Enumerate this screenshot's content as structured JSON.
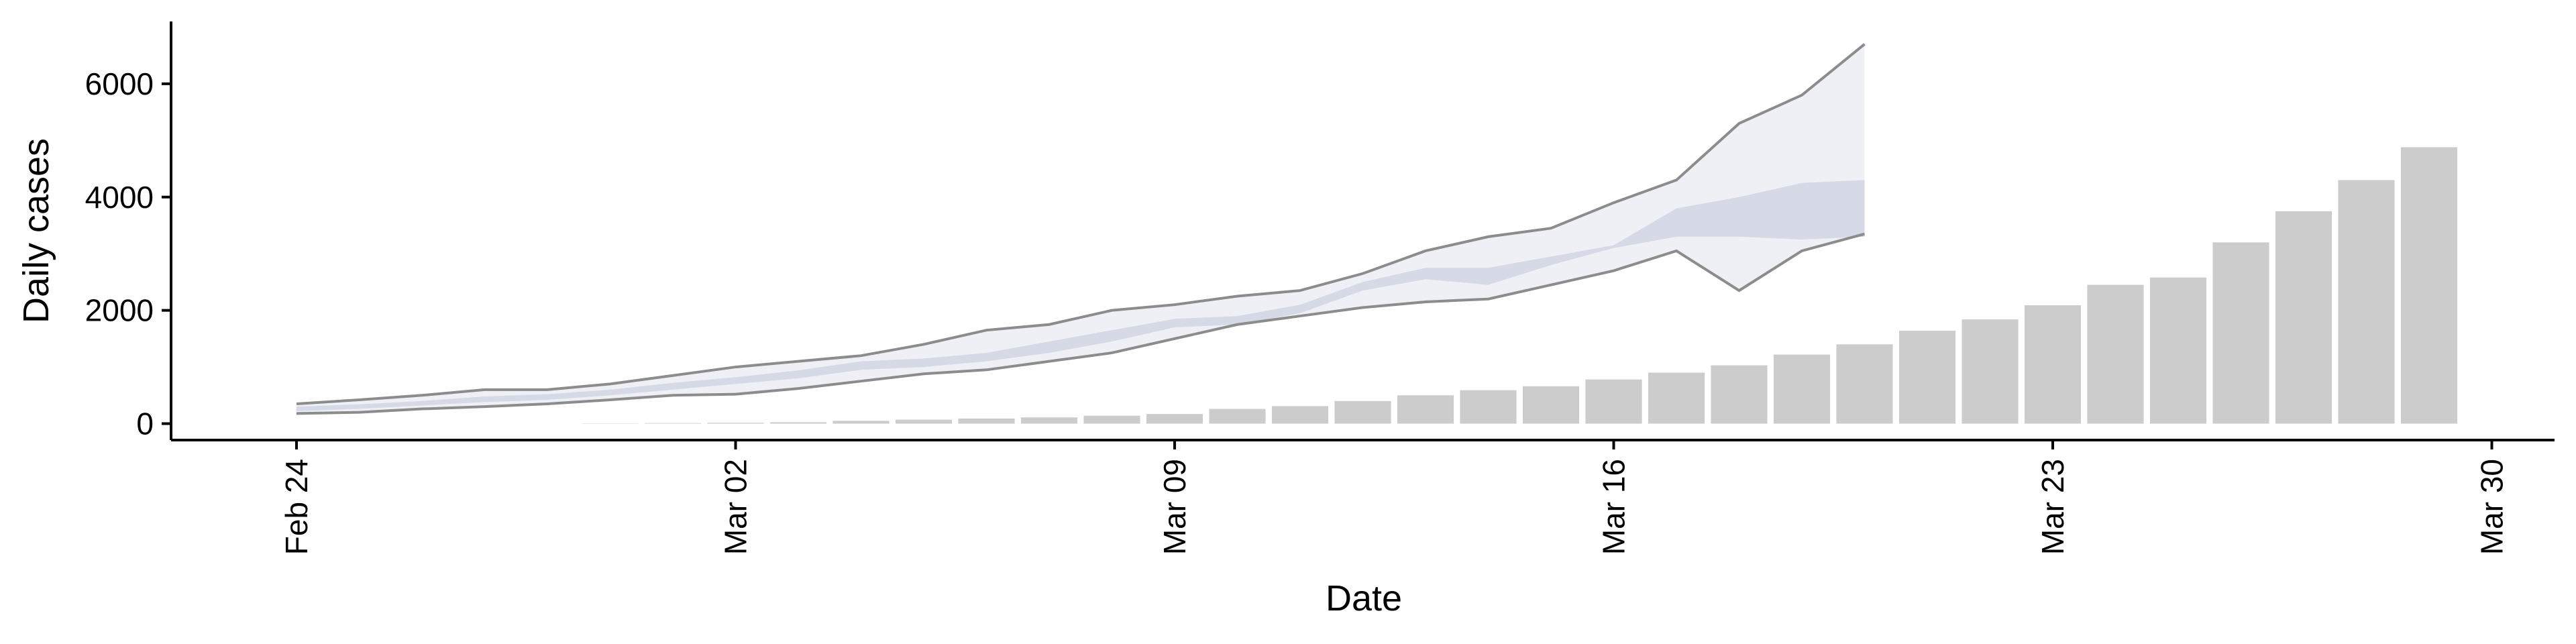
{
  "chart_data": {
    "type": "bar_forecast",
    "xlabel": "Date",
    "ylabel": "Daily cases",
    "xlim": [
      "Feb 22",
      "Mar 31"
    ],
    "xticks": [
      "Feb 24",
      "Mar 02",
      "Mar 09",
      "Mar 16",
      "Mar 23",
      "Mar 30"
    ],
    "ylim": [
      -290,
      7100
    ],
    "yticks": [
      0,
      2000,
      4000,
      6000
    ],
    "bars": {
      "color": "#cccccc",
      "x": [
        "Feb 29",
        "Mar 01",
        "Mar 02",
        "Mar 03",
        "Mar 04",
        "Mar 05",
        "Mar 06",
        "Mar 07",
        "Mar 08",
        "Mar 09",
        "Mar 10",
        "Mar 11",
        "Mar 12",
        "Mar 13",
        "Mar 14",
        "Mar 15",
        "Mar 16",
        "Mar 17",
        "Mar 18",
        "Mar 19",
        "Mar 20",
        "Mar 21",
        "Mar 22",
        "Mar 23",
        "Mar 24",
        "Mar 25",
        "Mar 26",
        "Mar 27",
        "Mar 28",
        "Mar 29"
      ],
      "values": [
        5,
        10,
        15,
        25,
        50,
        70,
        90,
        110,
        140,
        170,
        260,
        310,
        400,
        500,
        590,
        660,
        780,
        900,
        1030,
        1220,
        1400,
        1640,
        1840,
        2090,
        2450,
        2580,
        3200,
        3750,
        4300,
        4880
      ]
    },
    "forecast": {
      "outer_color": "#eef0f5",
      "inner_color": "#d6dae7",
      "line_color": "#8c8c8c",
      "x": [
        "Feb 24",
        "Feb 25",
        "Feb 26",
        "Feb 27",
        "Feb 28",
        "Feb 29",
        "Mar 01",
        "Mar 02",
        "Mar 03",
        "Mar 04",
        "Mar 05",
        "Mar 06",
        "Mar 07",
        "Mar 08",
        "Mar 09",
        "Mar 10",
        "Mar 11",
        "Mar 12",
        "Mar 13",
        "Mar 14",
        "Mar 15",
        "Mar 16",
        "Mar 17",
        "Mar 18",
        "Mar 19",
        "Mar 20"
      ],
      "upper": [
        350,
        420,
        500,
        600,
        600,
        700,
        850,
        1000,
        1100,
        1200,
        1400,
        1650,
        1750,
        2000,
        2100,
        2250,
        2350,
        2650,
        3050,
        3300,
        3450,
        3900,
        4300,
        5300,
        5800,
        6700
      ],
      "lower": [
        180,
        200,
        260,
        300,
        350,
        420,
        500,
        520,
        620,
        750,
        880,
        950,
        1100,
        1250,
        1500,
        1750,
        1900,
        2050,
        2150,
        2200,
        2450,
        2700,
        3050,
        2350,
        3050,
        3350
      ],
      "inner_upper": [
        300,
        340,
        400,
        480,
        520,
        600,
        720,
        820,
        940,
        1100,
        1150,
        1250,
        1450,
        1650,
        1850,
        1900,
        2100,
        2500,
        2750,
        2750,
        2950,
        3150,
        3800,
        4000,
        4250,
        4300
      ],
      "inner_lower": [
        220,
        260,
        320,
        380,
        420,
        500,
        600,
        700,
        800,
        950,
        1000,
        1100,
        1250,
        1450,
        1700,
        1750,
        1950,
        2350,
        2550,
        2450,
        2800,
        3100,
        3300,
        3300,
        3250,
        3300
      ]
    }
  }
}
